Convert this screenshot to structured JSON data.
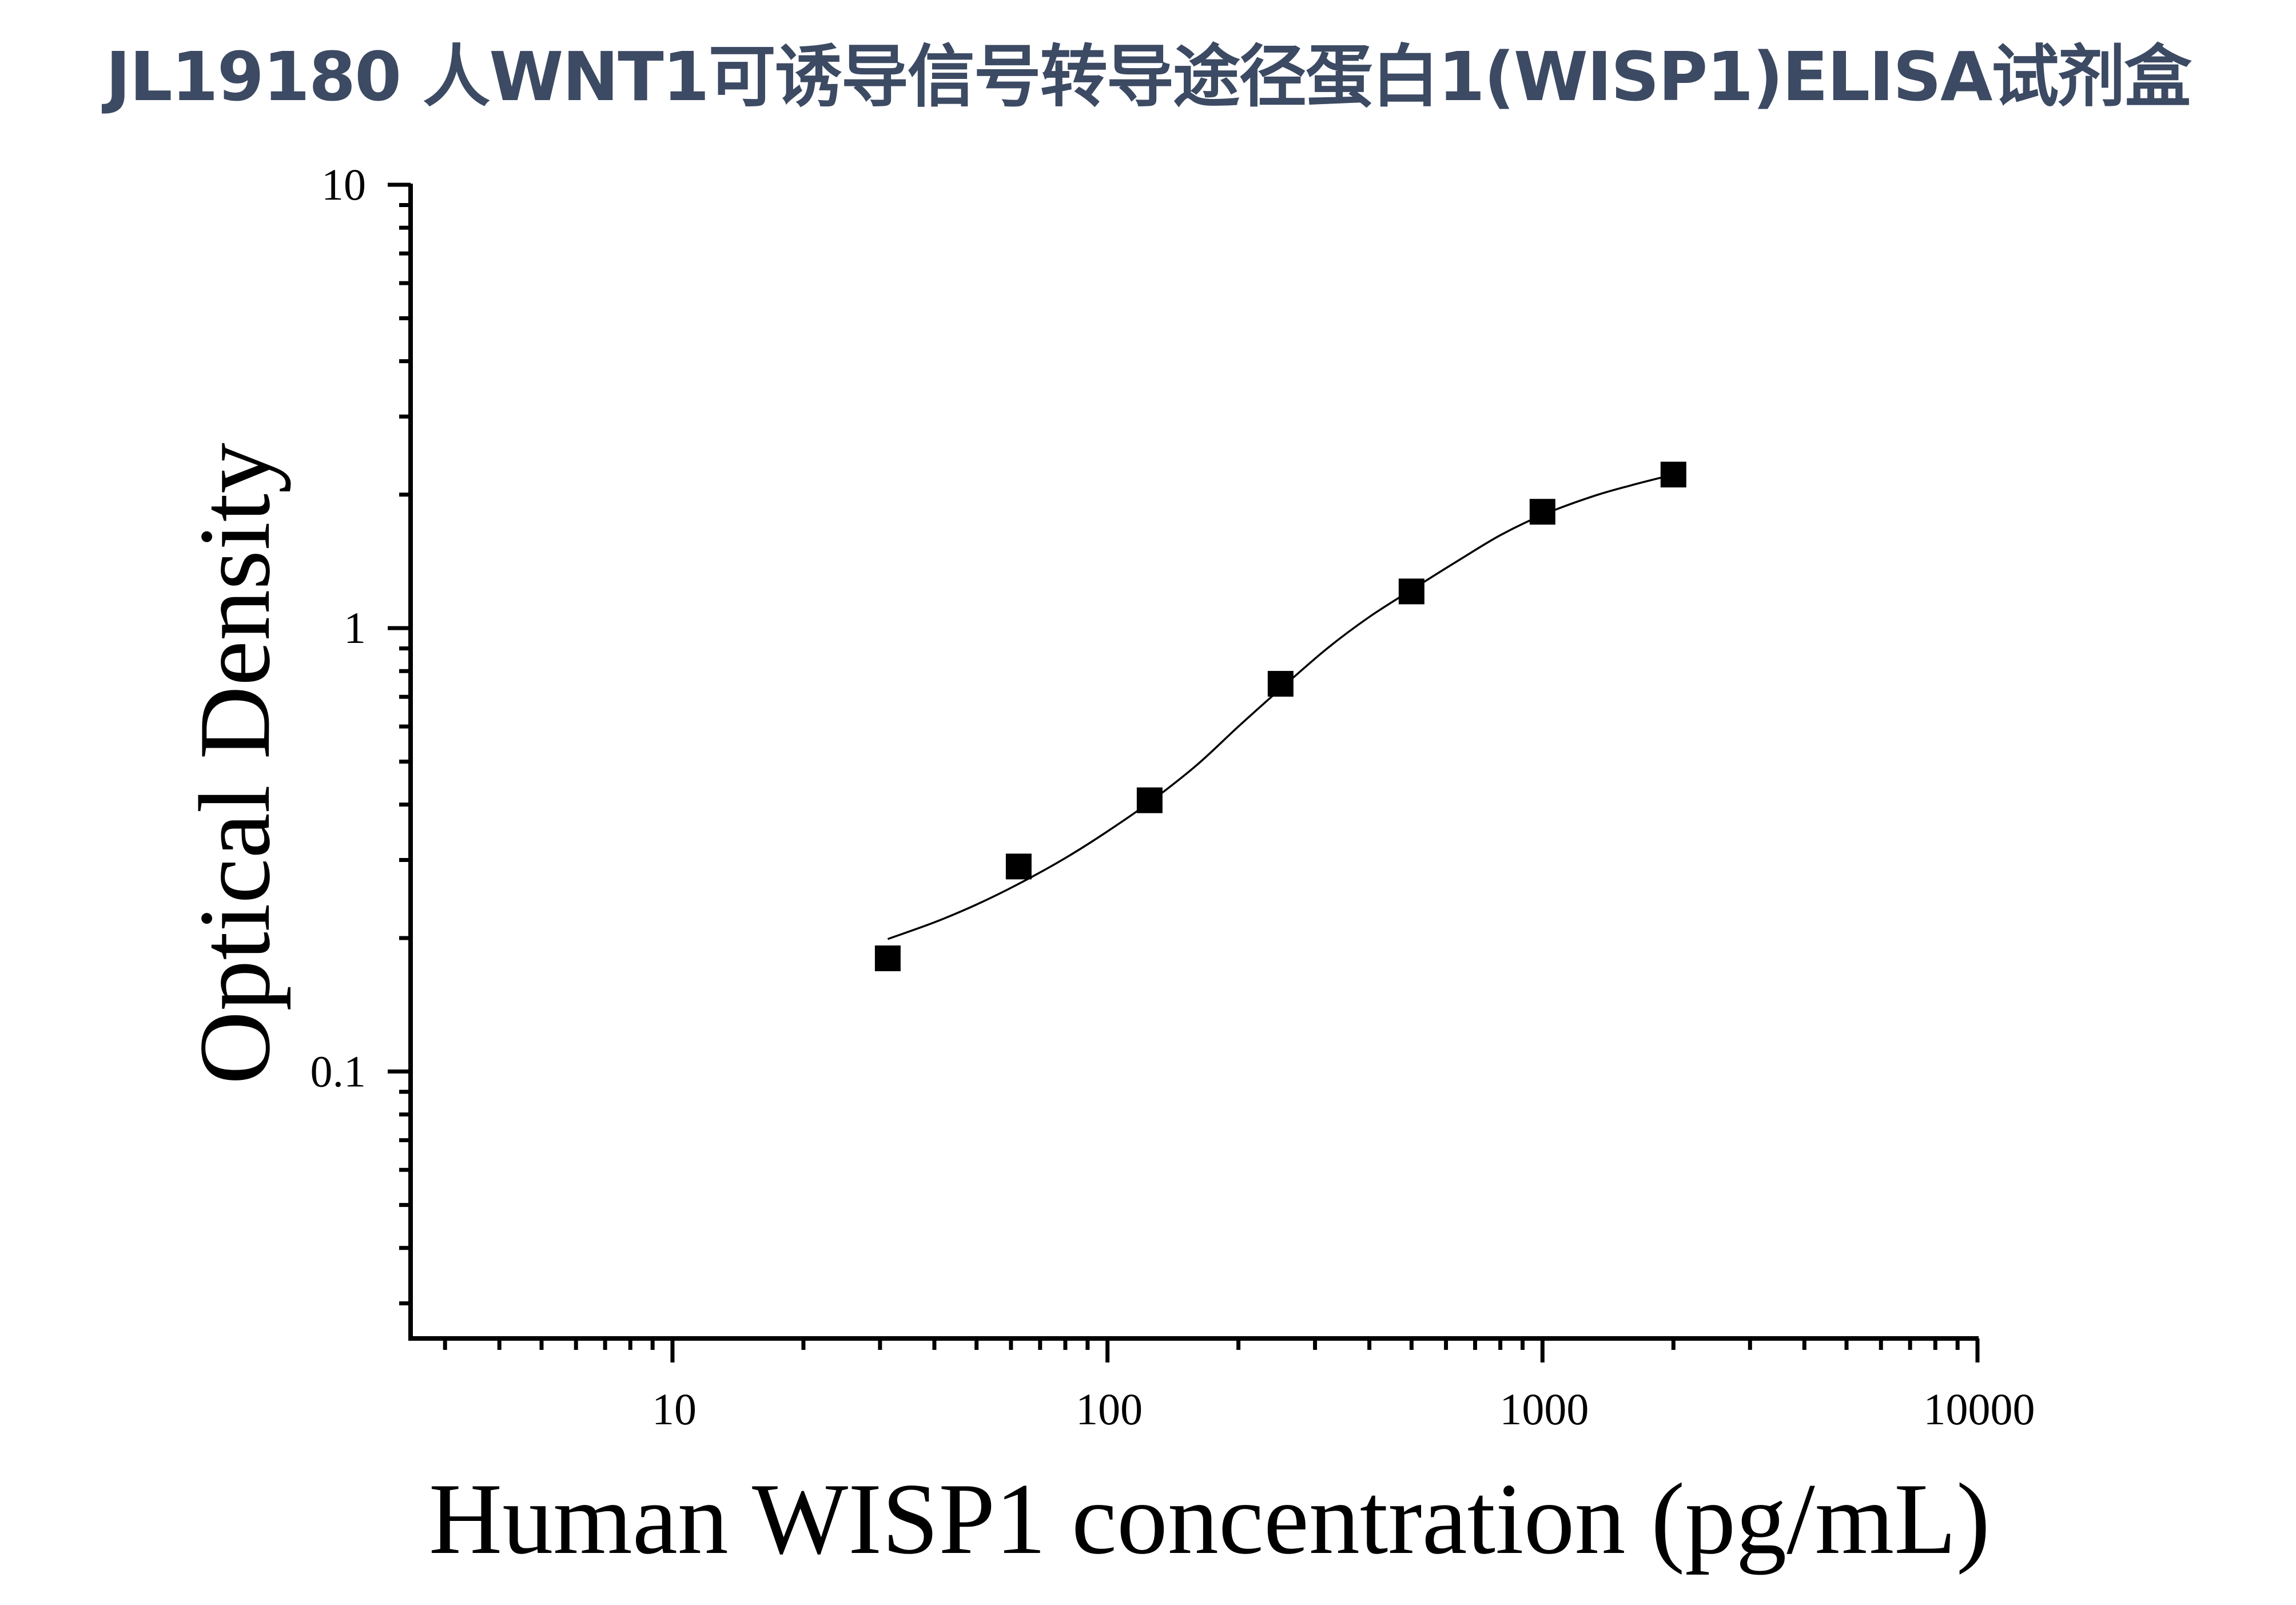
{
  "title": "JL19180 人WNT1可诱导信号转导途径蛋白1(WISP1)ELISA试剂盒",
  "colors": {
    "title": "#3c4a63",
    "axis": "#000000",
    "marker": "#000000",
    "curve": "#000000",
    "background": "#ffffff"
  },
  "chart_data": {
    "type": "scatter",
    "title": "JL19180 人WNT1可诱导信号转导途径蛋白1(WISP1)ELISA试剂盒",
    "xlabel": "Human WISP1 concentration (pg/mL)",
    "ylabel": "Optical Density",
    "xscale": "log",
    "yscale": "log",
    "xlim": [
      2.5,
      10000
    ],
    "ylim": [
      0.025,
      10
    ],
    "x_ticks": [
      10,
      100,
      1000,
      10000
    ],
    "x_tick_labels": [
      "10",
      "100",
      "1000",
      "10000"
    ],
    "y_ticks": [
      0.1,
      1,
      10
    ],
    "y_tick_labels": [
      "0.1",
      "1",
      "10"
    ],
    "grid": false,
    "legend": null,
    "series": [
      {
        "name": "Standard",
        "marker": "square",
        "x": [
          31.25,
          62.5,
          125,
          250,
          500,
          1000,
          2000
        ],
        "y": [
          0.18,
          0.29,
          0.409,
          0.749,
          1.21,
          1.83,
          2.22
        ]
      },
      {
        "name": "Fitted curve",
        "style": "line",
        "x": [
          31.25,
          40,
          50,
          62.5,
          80,
          100,
          125,
          160,
          200,
          250,
          320,
          400,
          500,
          640,
          800,
          1000,
          1300,
          1600,
          2000
        ],
        "y": [
          0.199,
          0.217,
          0.238,
          0.265,
          0.303,
          0.348,
          0.405,
          0.49,
          0.6,
          0.73,
          0.9,
          1.06,
          1.22,
          1.42,
          1.62,
          1.8,
          1.98,
          2.1,
          2.22
        ]
      }
    ]
  }
}
